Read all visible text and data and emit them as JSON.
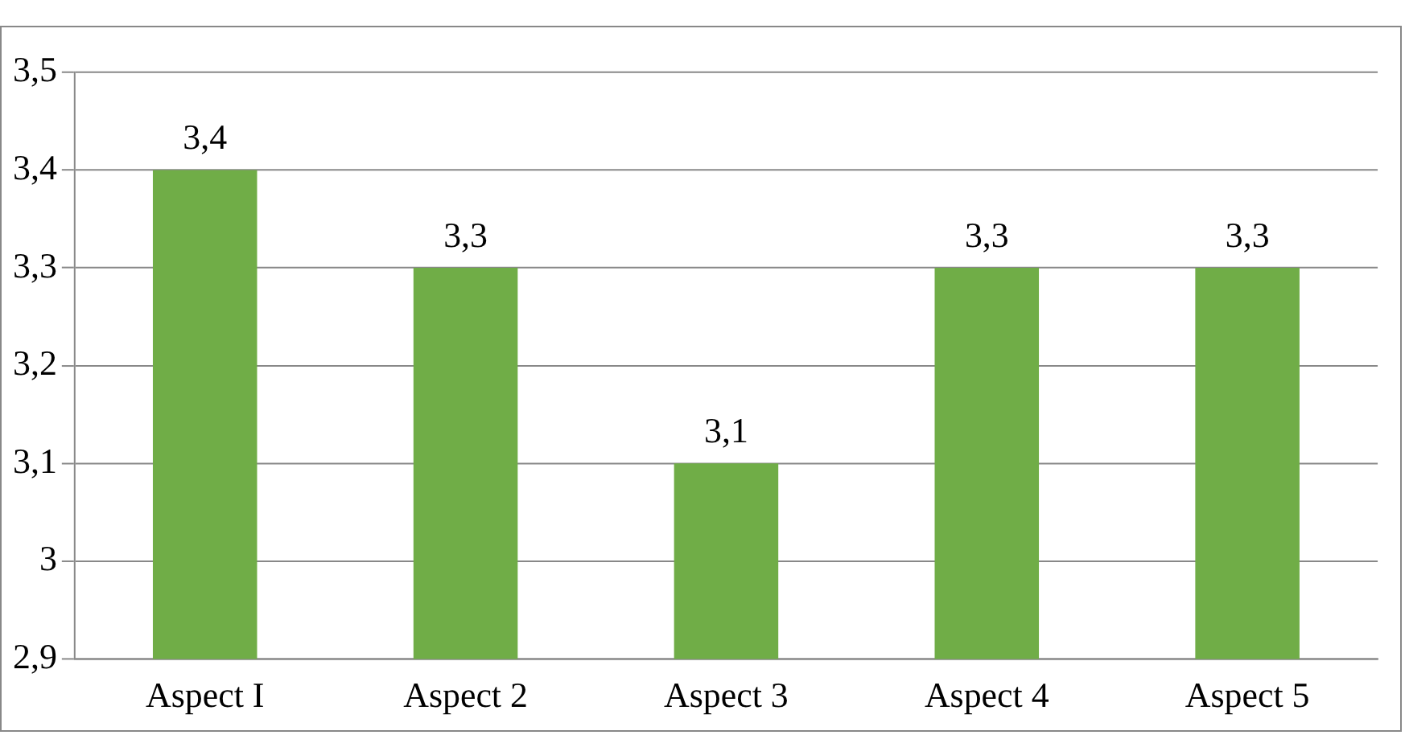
{
  "chart_data": {
    "type": "bar",
    "categories": [
      "Aspect I",
      "Aspect 2",
      "Aspect 3",
      "Aspect 4",
      "Aspect 5"
    ],
    "values": [
      3.4,
      3.3,
      3.1,
      3.3,
      3.3
    ],
    "value_labels": [
      "3,4",
      "3,3",
      "3,1",
      "3,3",
      "3,3"
    ],
    "color": "#70ad47",
    "ylim": [
      2.9,
      3.5
    ],
    "yticks": [
      {
        "value": 2.9,
        "label": "2,9"
      },
      3,
      {
        "value": 3.1,
        "label": "3,1"
      },
      {
        "value": 3.2,
        "label": "3,2"
      },
      {
        "value": 3.3,
        "label": "3,3"
      },
      {
        "value": 3.4,
        "label": "3,4"
      },
      {
        "value": 3.5,
        "label": "3,5"
      }
    ],
    "grid": "y"
  }
}
